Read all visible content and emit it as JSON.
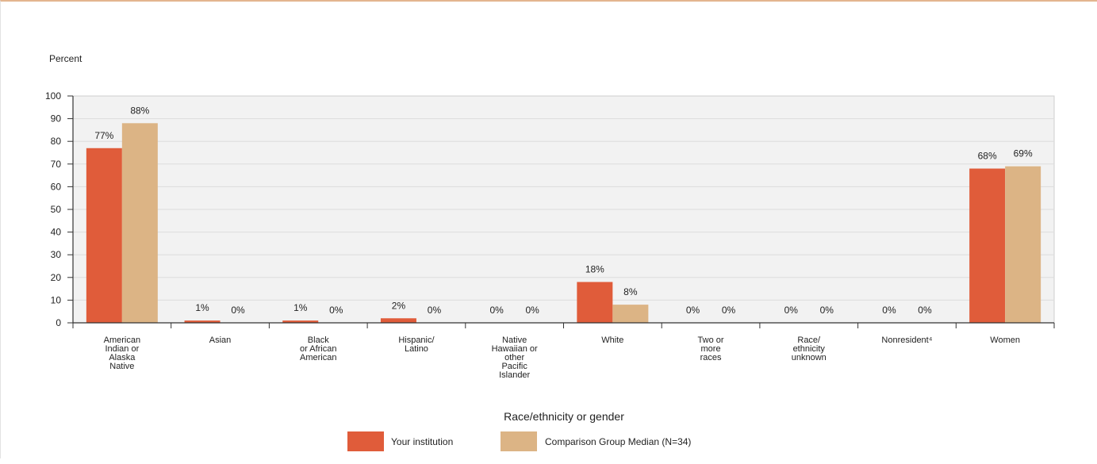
{
  "chart_data": {
    "type": "bar",
    "ylabel": "Percent",
    "xlabel": "Race/ethnicity or gender",
    "ylim": [
      0,
      100
    ],
    "yticks": [
      0,
      10,
      20,
      30,
      40,
      50,
      60,
      70,
      80,
      90,
      100
    ],
    "grid": true,
    "legend_position": "bottom",
    "categories": [
      [
        "American",
        "Indian or",
        "Alaska",
        "Native"
      ],
      [
        "Asian"
      ],
      [
        "Black",
        "or African",
        "American"
      ],
      [
        "Hispanic/",
        "Latino"
      ],
      [
        "Native",
        "Hawaiian or",
        "other",
        "Pacific",
        "Islander"
      ],
      [
        "White"
      ],
      [
        "Two or",
        "more",
        "races"
      ],
      [
        "Race/",
        "ethnicity",
        "unknown"
      ],
      [
        "Nonresident⁴"
      ],
      [
        "Women"
      ]
    ],
    "series": [
      {
        "name": "Your institution",
        "color": "#e05c3a",
        "values": [
          77,
          1,
          1,
          2,
          0,
          18,
          0,
          0,
          0,
          68
        ],
        "labels": [
          "77%",
          "1%",
          "1%",
          "2%",
          "0%",
          "18%",
          "0%",
          "0%",
          "0%",
          "68%"
        ]
      },
      {
        "name": "Comparison Group Median (N=34)",
        "color": "#dcb485",
        "values": [
          88,
          0,
          0,
          0,
          0,
          8,
          0,
          0,
          0,
          69
        ],
        "labels": [
          "88%",
          "0%",
          "0%",
          "0%",
          "0%",
          "8%",
          "0%",
          "0%",
          "0%",
          "69%"
        ]
      }
    ]
  }
}
